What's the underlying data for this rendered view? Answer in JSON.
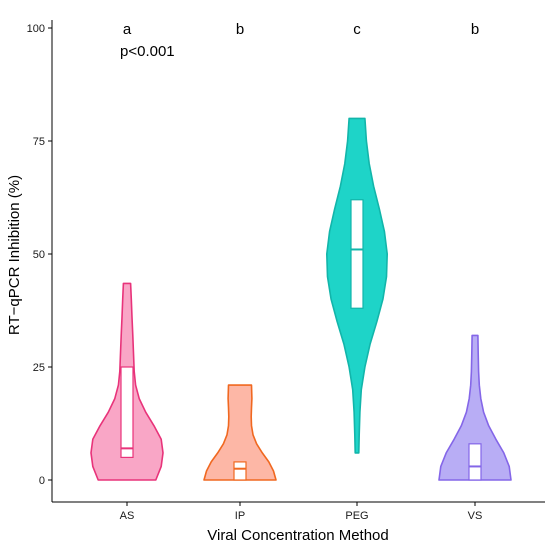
{
  "chart_data": {
    "type": "violin",
    "title": "",
    "xlabel": "Viral Concentration Method",
    "ylabel": "RT−qPCR Inhibition (%)",
    "ylim": [
      0,
      100
    ],
    "yticks": [
      0,
      25,
      50,
      75,
      100
    ],
    "categories": [
      "AS",
      "IP",
      "PEG",
      "VS"
    ],
    "annotation": "p<0.001",
    "groups": [
      {
        "name": "AS",
        "letter": "a",
        "fill": "#F9A6C6",
        "stroke": "#E8337A",
        "min": 0,
        "max": 43.5,
        "box": {
          "q1": 5,
          "median": 7,
          "q3": 25
        },
        "density": [
          [
            0,
            0.8
          ],
          [
            3,
            0.95
          ],
          [
            6,
            1.0
          ],
          [
            9,
            0.95
          ],
          [
            12,
            0.75
          ],
          [
            15,
            0.52
          ],
          [
            18,
            0.34
          ],
          [
            21,
            0.24
          ],
          [
            24,
            0.2
          ],
          [
            28,
            0.18
          ],
          [
            32,
            0.16
          ],
          [
            36,
            0.14
          ],
          [
            40,
            0.12
          ],
          [
            43.5,
            0.1
          ]
        ]
      },
      {
        "name": "IP",
        "letter": "b",
        "fill": "#FDB7A6",
        "stroke": "#F06820",
        "min": 0,
        "max": 21,
        "box": {
          "q1": 0,
          "median": 2.5,
          "q3": 4
        },
        "density": [
          [
            0,
            1.0
          ],
          [
            2,
            0.93
          ],
          [
            4,
            0.8
          ],
          [
            6,
            0.62
          ],
          [
            8,
            0.46
          ],
          [
            10,
            0.36
          ],
          [
            12,
            0.32
          ],
          [
            14,
            0.31
          ],
          [
            16,
            0.32
          ],
          [
            18,
            0.33
          ],
          [
            21,
            0.32
          ]
        ]
      },
      {
        "name": "PEG",
        "letter": "c",
        "fill": "#1ED4C8",
        "stroke": "#12B5AA",
        "min": 6,
        "max": 80,
        "box": {
          "q1": 38,
          "median": 51,
          "q3": 62
        },
        "density": [
          [
            6,
            0.05
          ],
          [
            10,
            0.06
          ],
          [
            15,
            0.08
          ],
          [
            20,
            0.12
          ],
          [
            25,
            0.22
          ],
          [
            30,
            0.36
          ],
          [
            35,
            0.55
          ],
          [
            40,
            0.72
          ],
          [
            45,
            0.82
          ],
          [
            50,
            0.84
          ],
          [
            55,
            0.76
          ],
          [
            60,
            0.62
          ],
          [
            65,
            0.46
          ],
          [
            70,
            0.34
          ],
          [
            75,
            0.26
          ],
          [
            80,
            0.22
          ]
        ]
      },
      {
        "name": "VS",
        "letter": "b",
        "fill": "#B8ADF5",
        "stroke": "#8466E8",
        "min": 0,
        "max": 32,
        "box": {
          "q1": 0,
          "median": 3,
          "q3": 8
        },
        "density": [
          [
            0,
            1.0
          ],
          [
            3,
            0.95
          ],
          [
            6,
            0.8
          ],
          [
            9,
            0.58
          ],
          [
            12,
            0.38
          ],
          [
            15,
            0.24
          ],
          [
            18,
            0.16
          ],
          [
            21,
            0.12
          ],
          [
            24,
            0.1
          ],
          [
            28,
            0.09
          ],
          [
            32,
            0.08
          ]
        ]
      }
    ],
    "grid": false
  }
}
